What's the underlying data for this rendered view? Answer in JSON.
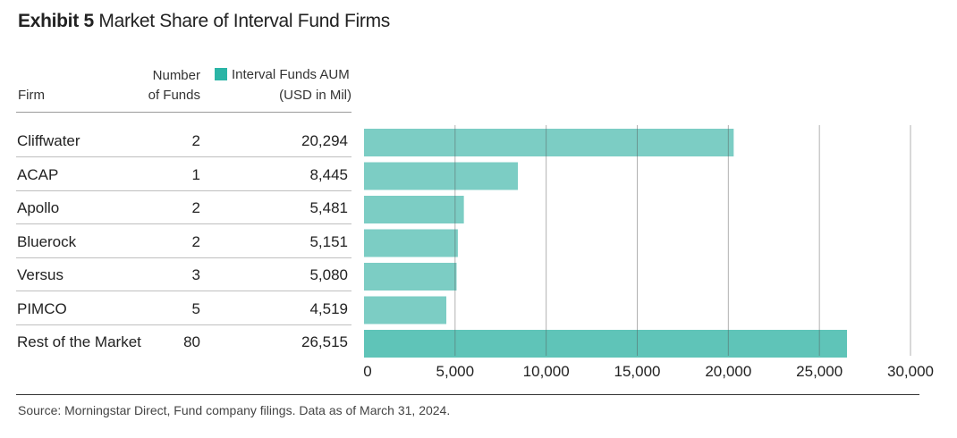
{
  "title": {
    "exhibit": "Exhibit 5",
    "text": "Market Share of Interval Fund Firms"
  },
  "headers": {
    "firm": "Firm",
    "num_line1": "Number",
    "num_line2": "of Funds",
    "aum_line1": "Interval Funds AUM",
    "aum_line2": "(USD in Mil)"
  },
  "colors": {
    "bar": "#7ccdc4",
    "bar_highlight": "#5fc4b8",
    "legend": "#2bb5a6",
    "gridline": "#555555"
  },
  "rows": [
    {
      "firm": "Cliffwater",
      "funds": "2",
      "aum": "20,294"
    },
    {
      "firm": "ACAP",
      "funds": "1",
      "aum": "8,445"
    },
    {
      "firm": "Apollo",
      "funds": "2",
      "aum": "5,481"
    },
    {
      "firm": "Bluerock",
      "funds": "2",
      "aum": "5,151"
    },
    {
      "firm": "Versus",
      "funds": "3",
      "aum": "5,080"
    },
    {
      "firm": "PIMCO",
      "funds": "5",
      "aum": "4,519"
    },
    {
      "firm": "Rest of the Market",
      "funds": "80",
      "aum": "26,515"
    }
  ],
  "chart_data": {
    "type": "bar",
    "orientation": "horizontal",
    "categories": [
      "Cliffwater",
      "ACAP",
      "Apollo",
      "Bluerock",
      "Versus",
      "PIMCO",
      "Rest of the Market"
    ],
    "values": [
      20294,
      8445,
      5481,
      5151,
      5080,
      4519,
      26515
    ],
    "xlim": [
      0,
      30000
    ],
    "xticks": [
      0,
      5000,
      10000,
      15000,
      20000,
      25000,
      30000
    ],
    "xtick_labels": [
      "0",
      "5,000",
      "10,000",
      "15,000",
      "20,000",
      "25,000",
      "30,000"
    ],
    "grid": true,
    "legend": "Interval Funds AUM"
  },
  "source": "Source: Morningstar Direct, Fund company filings. Data as of March 31, 2024."
}
